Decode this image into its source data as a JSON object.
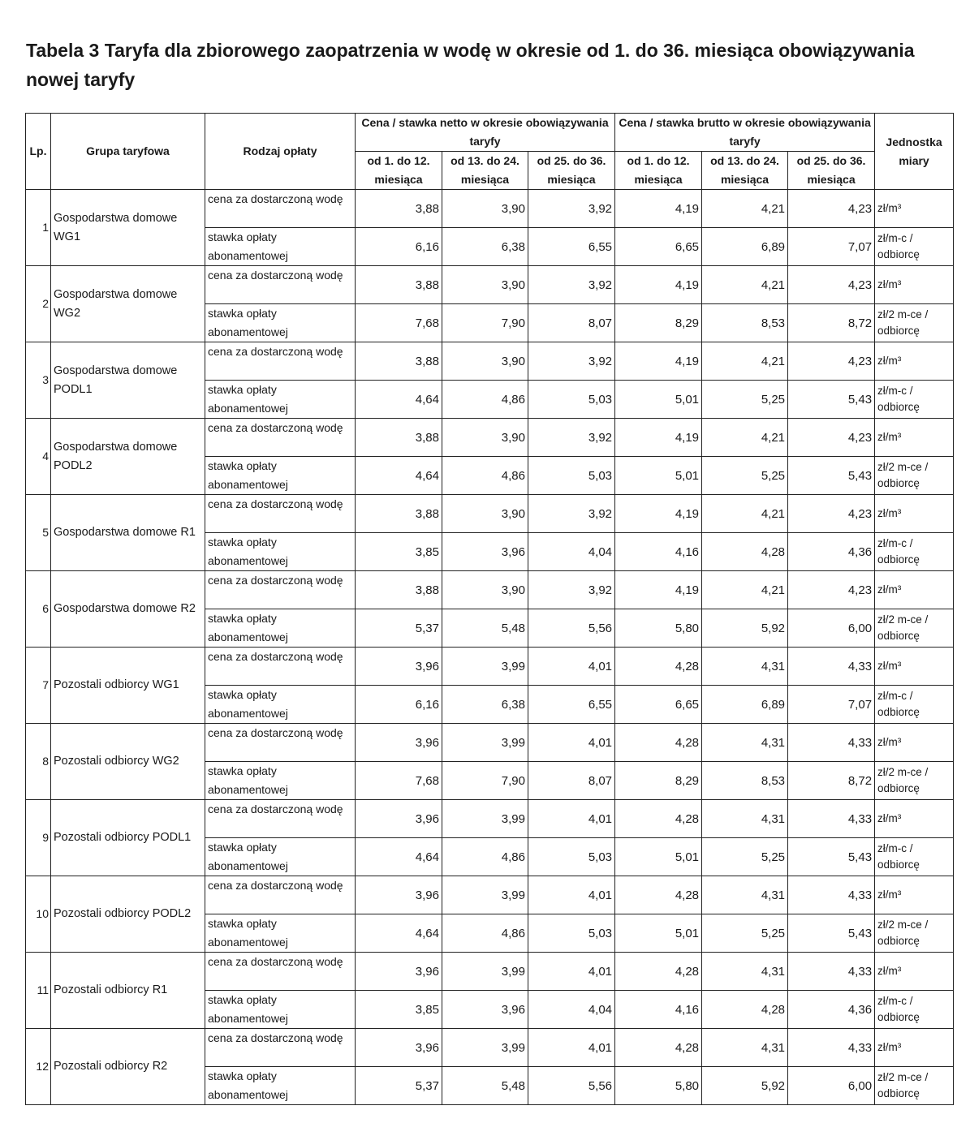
{
  "title": "Tabela 3 Taryfa dla zbiorowego zaopatrzenia w wodę w okresie od 1. do 36. miesiąca obowiązywania nowej taryfy",
  "headers": {
    "lp": "Lp.",
    "group": "Grupa taryfowa",
    "kind": "Rodzaj opłaty",
    "netto": "Cena / stawka netto w okresie obowiązywania taryfy",
    "brutto": "Cena / stawka brutto w okresie obowiązywania taryfy",
    "unit": "Jednostka miary",
    "periods": [
      "od 1. do 12. miesiąca",
      "od 13. do 24. miesiąca",
      "od 25. do 36. miesiąca"
    ]
  },
  "fee_kinds": [
    "cena za dostarczoną wodę",
    "stawka opłaty abonamentowej"
  ],
  "rows": [
    {
      "lp": "1",
      "group": "Gospodarstwa domowe WG1",
      "water": [
        "3,88",
        "3,90",
        "3,92",
        "4,19",
        "4,21",
        "4,23"
      ],
      "water_unit": "zł/m³",
      "sub": [
        "6,16",
        "6,38",
        "6,55",
        "6,65",
        "6,89",
        "7,07"
      ],
      "sub_unit": "zł/m-c / odbiorcę"
    },
    {
      "lp": "2",
      "group": "Gospodarstwa domowe WG2",
      "water": [
        "3,88",
        "3,90",
        "3,92",
        "4,19",
        "4,21",
        "4,23"
      ],
      "water_unit": "zł/m³",
      "sub": [
        "7,68",
        "7,90",
        "8,07",
        "8,29",
        "8,53",
        "8,72"
      ],
      "sub_unit": "zł/2 m-ce / odbiorcę"
    },
    {
      "lp": "3",
      "group": "Gospodarstwa domowe PODL1",
      "water": [
        "3,88",
        "3,90",
        "3,92",
        "4,19",
        "4,21",
        "4,23"
      ],
      "water_unit": "zł/m³",
      "sub": [
        "4,64",
        "4,86",
        "5,03",
        "5,01",
        "5,25",
        "5,43"
      ],
      "sub_unit": "zł/m-c / odbiorcę"
    },
    {
      "lp": "4",
      "group": "Gospodarstwa domowe PODL2",
      "water": [
        "3,88",
        "3,90",
        "3,92",
        "4,19",
        "4,21",
        "4,23"
      ],
      "water_unit": "zł/m³",
      "sub": [
        "4,64",
        "4,86",
        "5,03",
        "5,01",
        "5,25",
        "5,43"
      ],
      "sub_unit": "zł/2 m-ce / odbiorcę"
    },
    {
      "lp": "5",
      "group": "Gospodarstwa domowe R1",
      "water": [
        "3,88",
        "3,90",
        "3,92",
        "4,19",
        "4,21",
        "4,23"
      ],
      "water_unit": "zł/m³",
      "sub": [
        "3,85",
        "3,96",
        "4,04",
        "4,16",
        "4,28",
        "4,36"
      ],
      "sub_unit": "zł/m-c / odbiorcę"
    },
    {
      "lp": "6",
      "group": "Gospodarstwa domowe R2",
      "water": [
        "3,88",
        "3,90",
        "3,92",
        "4,19",
        "4,21",
        "4,23"
      ],
      "water_unit": "zł/m³",
      "sub": [
        "5,37",
        "5,48",
        "5,56",
        "5,80",
        "5,92",
        "6,00"
      ],
      "sub_unit": "zł/2 m-ce / odbiorcę"
    },
    {
      "lp": "7",
      "group": "Pozostali odbiorcy WG1",
      "water": [
        "3,96",
        "3,99",
        "4,01",
        "4,28",
        "4,31",
        "4,33"
      ],
      "water_unit": "zł/m³",
      "sub": [
        "6,16",
        "6,38",
        "6,55",
        "6,65",
        "6,89",
        "7,07"
      ],
      "sub_unit": "zł/m-c / odbiorcę"
    },
    {
      "lp": "8",
      "group": "Pozostali odbiorcy WG2",
      "water": [
        "3,96",
        "3,99",
        "4,01",
        "4,28",
        "4,31",
        "4,33"
      ],
      "water_unit": "zł/m³",
      "sub": [
        "7,68",
        "7,90",
        "8,07",
        "8,29",
        "8,53",
        "8,72"
      ],
      "sub_unit": "zł/2 m-ce / odbiorcę"
    },
    {
      "lp": "9",
      "group": "Pozostali odbiorcy PODL1",
      "water": [
        "3,96",
        "3,99",
        "4,01",
        "4,28",
        "4,31",
        "4,33"
      ],
      "water_unit": "zł/m³",
      "sub": [
        "4,64",
        "4,86",
        "5,03",
        "5,01",
        "5,25",
        "5,43"
      ],
      "sub_unit": "zł/m-c / odbiorcę"
    },
    {
      "lp": "10",
      "group": "Pozostali odbiorcy PODL2",
      "water": [
        "3,96",
        "3,99",
        "4,01",
        "4,28",
        "4,31",
        "4,33"
      ],
      "water_unit": "zł/m³",
      "sub": [
        "4,64",
        "4,86",
        "5,03",
        "5,01",
        "5,25",
        "5,43"
      ],
      "sub_unit": "zł/2 m-ce / odbiorcę"
    },
    {
      "lp": "11",
      "group": "Pozostali odbiorcy R1",
      "water": [
        "3,96",
        "3,99",
        "4,01",
        "4,28",
        "4,31",
        "4,33"
      ],
      "water_unit": "zł/m³",
      "sub": [
        "3,85",
        "3,96",
        "4,04",
        "4,16",
        "4,28",
        "4,36"
      ],
      "sub_unit": "zł/m-c / odbiorcę"
    },
    {
      "lp": "12",
      "group": "Pozostali odbiorcy R2",
      "water": [
        "3,96",
        "3,99",
        "4,01",
        "4,28",
        "4,31",
        "4,33"
      ],
      "water_unit": "zł/m³",
      "sub": [
        "5,37",
        "5,48",
        "5,56",
        "5,80",
        "5,92",
        "6,00"
      ],
      "sub_unit": "zł/2 m-ce / odbiorcę"
    }
  ]
}
